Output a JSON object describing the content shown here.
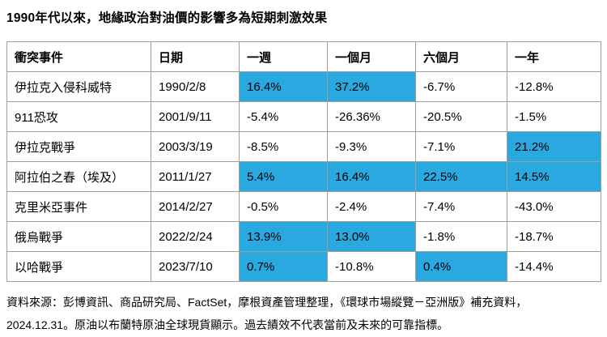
{
  "title": "1990年代以來，地緣政治對油價的影響多為短期刺激效果",
  "colors": {
    "highlight": "#29A9E0",
    "border": "#9E9E9E",
    "text": "#000000",
    "background": "#FFFFFF"
  },
  "table": {
    "headers": [
      "衝突事件",
      "日期",
      "一週",
      "一個月",
      "六個月",
      "一年"
    ],
    "rows": [
      {
        "event": "伊拉克入侵科威特",
        "date": "1990/2/8",
        "cells": [
          {
            "value": "16.4%",
            "highlight": true
          },
          {
            "value": "37.2%",
            "highlight": true
          },
          {
            "value": "-6.7%",
            "highlight": false
          },
          {
            "value": "-12.8%",
            "highlight": false
          }
        ]
      },
      {
        "event": "911恐攻",
        "date": "2001/9/11",
        "cells": [
          {
            "value": "-5.4%",
            "highlight": false
          },
          {
            "value": "-26.36%",
            "highlight": false
          },
          {
            "value": "-20.5%",
            "highlight": false
          },
          {
            "value": "-1.5%",
            "highlight": false
          }
        ]
      },
      {
        "event": "伊拉克戰爭",
        "date": "2003/3/19",
        "cells": [
          {
            "value": "-8.5%",
            "highlight": false
          },
          {
            "value": "-9.3%",
            "highlight": false
          },
          {
            "value": "-7.1%",
            "highlight": false
          },
          {
            "value": "21.2%",
            "highlight": true
          }
        ]
      },
      {
        "event": "阿拉伯之春（埃及）",
        "date": "2011/1/27",
        "cells": [
          {
            "value": "5.4%",
            "highlight": true
          },
          {
            "value": "16.4%",
            "highlight": true
          },
          {
            "value": "22.5%",
            "highlight": true
          },
          {
            "value": "14.5%",
            "highlight": true
          }
        ]
      },
      {
        "event": "克里米亞事件",
        "date": "2014/2/27",
        "cells": [
          {
            "value": "-0.5%",
            "highlight": false
          },
          {
            "value": "-2.4%",
            "highlight": false
          },
          {
            "value": "-7.4%",
            "highlight": false
          },
          {
            "value": "-43.0%",
            "highlight": false
          }
        ]
      },
      {
        "event": "俄烏戰爭",
        "date": "2022/2/24",
        "cells": [
          {
            "value": "13.9%",
            "highlight": true
          },
          {
            "value": "13.0%",
            "highlight": true
          },
          {
            "value": "-1.8%",
            "highlight": false
          },
          {
            "value": "-18.7%",
            "highlight": false
          }
        ]
      },
      {
        "event": "以哈戰爭",
        "date": "2023/7/10",
        "cells": [
          {
            "value": "0.7%",
            "highlight": true
          },
          {
            "value": "-10.8%",
            "highlight": false
          },
          {
            "value": "0.4%",
            "highlight": true
          },
          {
            "value": "-14.4%",
            "highlight": false
          }
        ]
      }
    ]
  },
  "footer": {
    "line1": "資料來源：彭博資訊、商品研究局、FactSet，摩根資產管理整理，《環球市場縱覽－亞洲版》補充資料，",
    "line2": "2024.12.31。原油以布蘭特原油全球現貨顯示。過去績效不代表當前及未來的可靠指標。"
  },
  "chart_data": {
    "type": "table",
    "title": "1990年代以來，地緣政治對油價的影響多為短期刺激效果",
    "columns": [
      "衝突事件",
      "日期",
      "一週",
      "一個月",
      "六個月",
      "一年"
    ],
    "rows": [
      [
        "伊拉克入侵科威特",
        "1990/2/8",
        16.4,
        37.2,
        -6.7,
        -12.8
      ],
      [
        "911恐攻",
        "2001/9/11",
        -5.4,
        -26.36,
        -20.5,
        -1.5
      ],
      [
        "伊拉克戰爭",
        "2003/3/19",
        -8.5,
        -9.3,
        -7.1,
        21.2
      ],
      [
        "阿拉伯之春（埃及）",
        "2011/1/27",
        5.4,
        16.4,
        22.5,
        14.5
      ],
      [
        "克里米亞事件",
        "2014/2/27",
        -0.5,
        -2.4,
        -7.4,
        -43.0
      ],
      [
        "俄烏戰爭",
        "2022/2/24",
        13.9,
        13.0,
        -1.8,
        -18.7
      ],
      [
        "以哈戰爭",
        "2023/7/10",
        0.7,
        -10.8,
        0.4,
        -14.4
      ]
    ],
    "values_unit": "%",
    "highlight_color": "#29A9E0",
    "highlighted_cells": [
      [
        0,
        2
      ],
      [
        0,
        3
      ],
      [
        2,
        5
      ],
      [
        3,
        2
      ],
      [
        3,
        3
      ],
      [
        3,
        4
      ],
      [
        3,
        5
      ],
      [
        5,
        2
      ],
      [
        5,
        3
      ],
      [
        6,
        2
      ],
      [
        6,
        4
      ]
    ],
    "legend_position": "none",
    "grid": true
  }
}
